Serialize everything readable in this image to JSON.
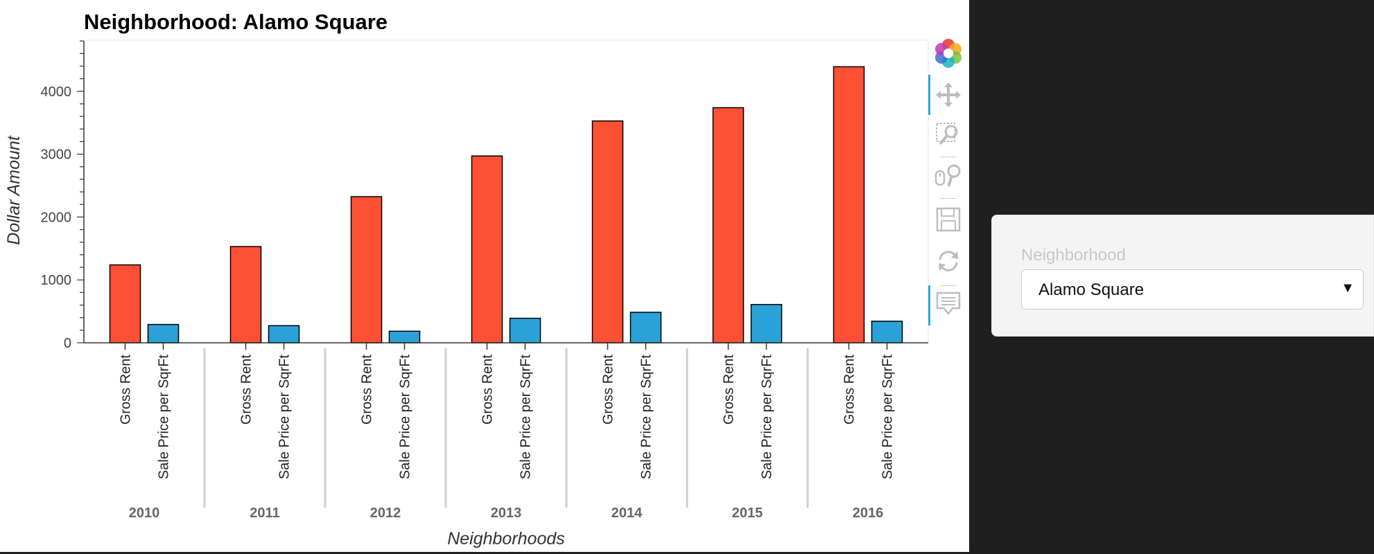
{
  "chart_data": {
    "type": "bar",
    "title": "Neighborhood: Alamo Square",
    "xlabel": "Neighborhoods",
    "ylabel": "Dollar Amount",
    "ylim": [
      0,
      4800
    ],
    "yticks": [
      0,
      1000,
      2000,
      3000,
      4000
    ],
    "categories": [
      "2010",
      "2011",
      "2012",
      "2013",
      "2014",
      "2015",
      "2016"
    ],
    "series": [
      {
        "name": "Gross Rent",
        "color": "#fd5034",
        "values": [
          1239,
          1530,
          2324,
          2971,
          3528,
          3739,
          4390
        ]
      },
      {
        "name": "Sale Price per SqrFt",
        "color": "#2aa2d8",
        "values": [
          291,
          272,
          184,
          390,
          485,
          609,
          343
        ]
      }
    ],
    "grid": false,
    "legend": "none"
  },
  "toolbar": {
    "tools": [
      "bokeh-logo-icon",
      "pan-icon",
      "box-zoom-icon",
      "wheel-zoom-icon",
      "save-icon",
      "reset-icon",
      "hover-icon"
    ]
  },
  "widget": {
    "label": "Neighborhood",
    "selected": "Alamo Square"
  }
}
